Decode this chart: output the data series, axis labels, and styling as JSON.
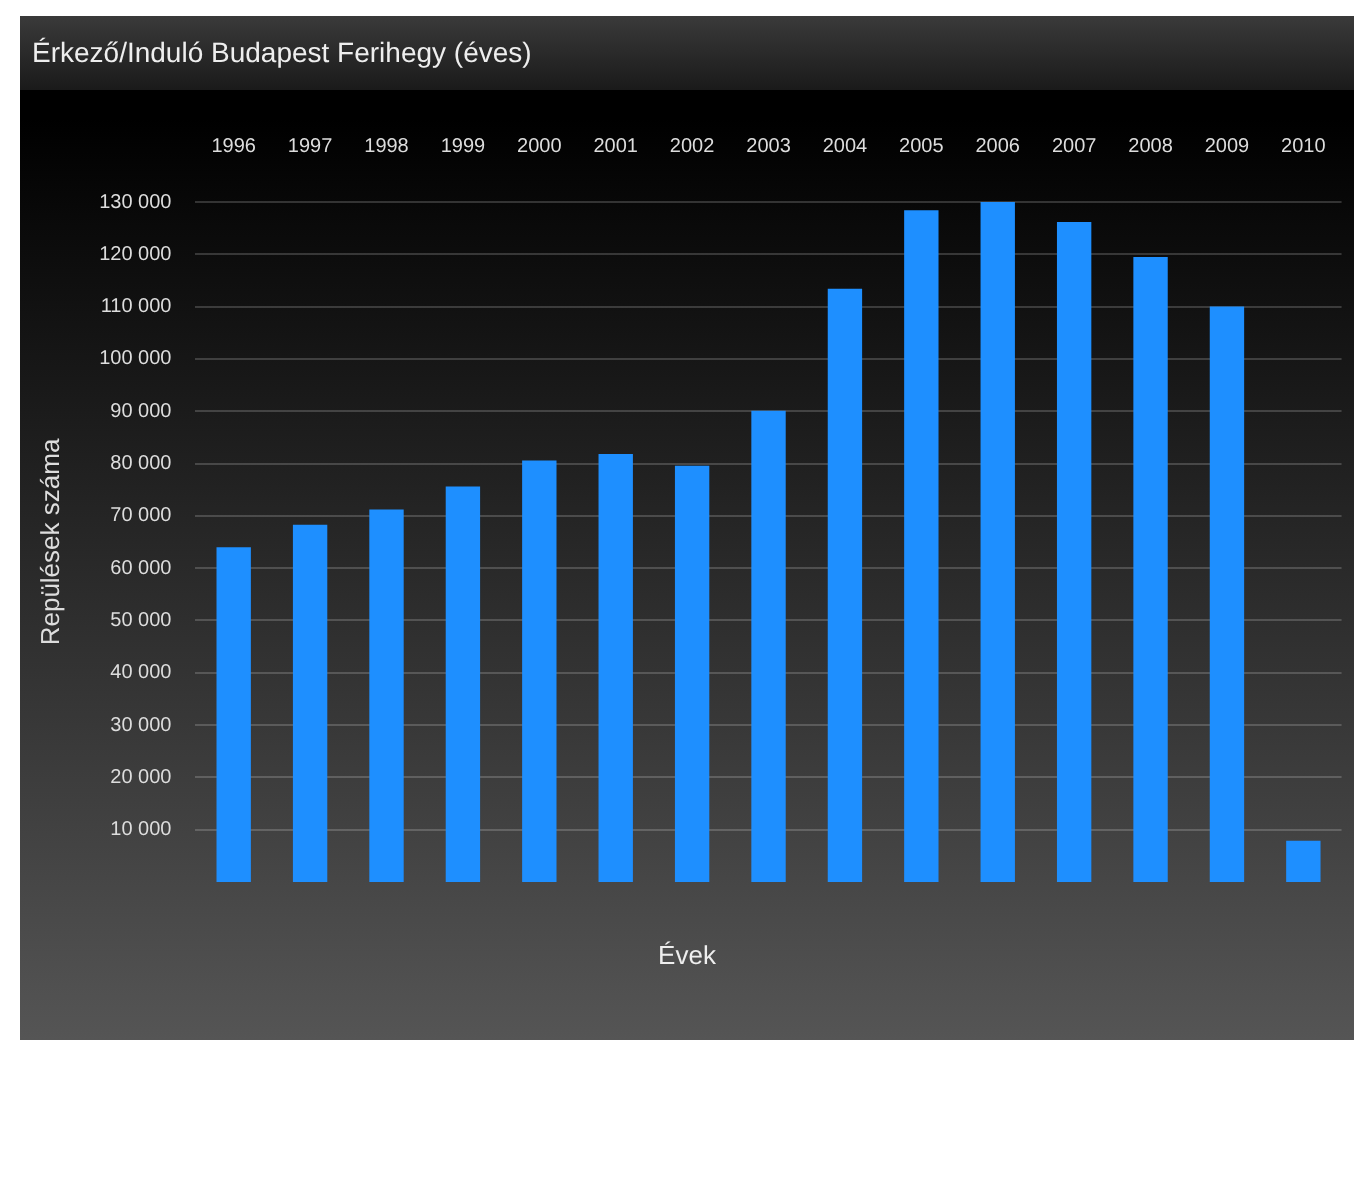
{
  "chart_data": {
    "type": "bar",
    "title": "Érkező/Induló Budapest Ferihegy (éves)",
    "xlabel": "Évek",
    "ylabel": "Repülések száma",
    "categories": [
      "1996",
      "1997",
      "1998",
      "1999",
      "2000",
      "2001",
      "2002",
      "2003",
      "2004",
      "2005",
      "2006",
      "2007",
      "2008",
      "2009",
      "2010"
    ],
    "values": [
      64000,
      68300,
      71200,
      75600,
      80600,
      81800,
      79600,
      90100,
      113400,
      128400,
      130000,
      126200,
      119500,
      110000,
      7900
    ],
    "color": "#1e8fff",
    "ylim": [
      0,
      130000
    ],
    "yticks": [
      {
        "value": 10000,
        "label": "10 000"
      },
      {
        "value": 20000,
        "label": "20 000"
      },
      {
        "value": 30000,
        "label": "30 000"
      },
      {
        "value": 40000,
        "label": "40 000"
      },
      {
        "value": 50000,
        "label": "50 000"
      },
      {
        "value": 60000,
        "label": "60 000"
      },
      {
        "value": 70000,
        "label": "70 000"
      },
      {
        "value": 80000,
        "label": "80 000"
      },
      {
        "value": 90000,
        "label": "90 000"
      },
      {
        "value": 100000,
        "label": "100 000"
      },
      {
        "value": 110000,
        "label": "110 000"
      },
      {
        "value": 120000,
        "label": "120 000"
      },
      {
        "value": 130000,
        "label": "130 000"
      }
    ],
    "grid": "y",
    "legend": false
  }
}
